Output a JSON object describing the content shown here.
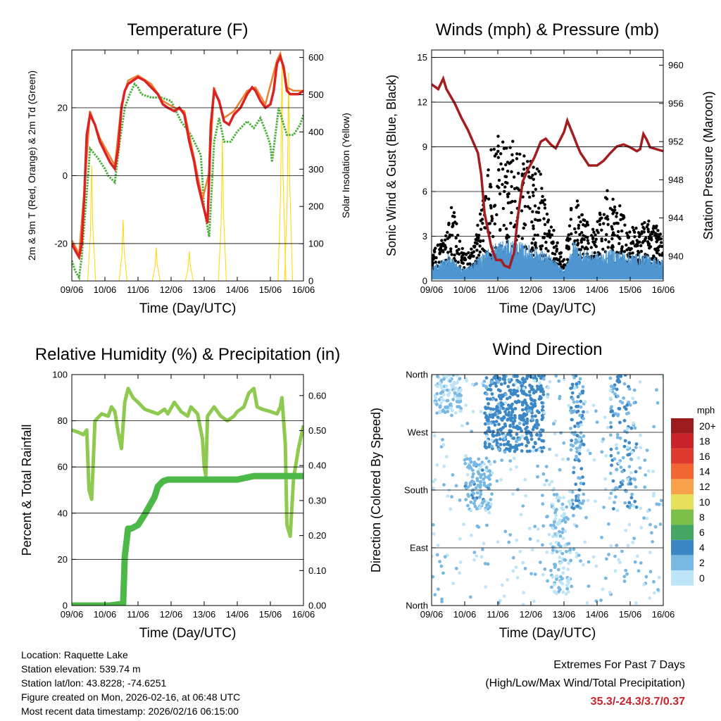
{
  "chart_data": [
    {
      "id": "temp",
      "type": "line",
      "title": "Temperature (F)",
      "xlabel": "Time (Day/UTC)",
      "ylabel": "2m & 9m T (Red, Orange) & 2m Td (Green)",
      "ylabel_right": "Solar Insolation (Yellow)",
      "x_ticks": [
        "09/06",
        "10/06",
        "11/06",
        "12/06",
        "13/06",
        "14/06",
        "15/06",
        "16/06"
      ],
      "ylim": [
        -31,
        37
      ],
      "y_ticks": [
        -20,
        0,
        20
      ],
      "y_tick_labels": [
        "-20",
        "0",
        "20"
      ],
      "ylim_right": [
        0,
        620
      ],
      "y2_ticks": [
        0,
        100,
        200,
        300,
        400,
        500,
        600
      ],
      "y2_tick_labels": [
        "0",
        "100",
        "200",
        "300",
        "400",
        "500",
        "600"
      ],
      "series": [
        {
          "name": "2m T",
          "color": "#dd2222",
          "style": "dots-thick",
          "x": [
            0,
            0.1,
            0.22,
            0.3,
            0.38,
            0.45,
            0.55,
            0.7,
            0.85,
            1.0,
            1.15,
            1.3,
            1.4,
            1.5,
            1.6,
            1.7,
            1.85,
            2.0,
            2.2,
            2.4,
            2.6,
            2.75,
            2.9,
            3.1,
            3.25,
            3.4,
            3.55,
            3.7,
            3.8,
            3.95,
            4.05,
            4.1,
            4.15,
            4.2,
            4.3,
            4.45,
            4.6,
            4.75,
            4.9,
            5.1,
            5.3,
            5.45,
            5.55,
            5.7,
            5.85,
            6.0,
            6.1,
            6.2,
            6.3,
            6.4,
            6.5,
            6.6,
            6.7,
            6.85,
            7.0
          ],
          "y": [
            -20,
            -22,
            -24,
            -20,
            -5,
            12,
            18,
            15,
            10,
            7,
            4,
            2,
            8,
            20,
            25,
            27,
            28,
            29,
            28,
            26,
            24,
            21,
            20,
            19,
            20,
            18,
            10,
            4,
            -2,
            -8,
            -12,
            -14,
            0,
            15,
            25,
            22,
            16,
            15,
            18,
            20,
            24,
            26,
            25,
            22,
            20,
            21,
            25,
            33,
            35,
            32,
            25,
            24,
            24,
            24,
            25
          ]
        },
        {
          "name": "9m T",
          "color": "#f08030",
          "style": "line",
          "x": [
            0,
            0.22,
            0.38,
            0.55,
            0.85,
            1.3,
            1.5,
            1.7,
            2.0,
            2.4,
            2.75,
            3.1,
            3.4,
            3.7,
            3.95,
            4.15,
            4.3,
            4.6,
            4.9,
            5.3,
            5.55,
            5.85,
            6.2,
            6.3,
            6.5,
            6.7,
            7.0
          ],
          "y": [
            -19,
            -23,
            -4,
            19,
            11,
            3,
            21,
            28,
            29.5,
            27,
            22,
            20,
            19,
            5,
            -7,
            1,
            26,
            17,
            19,
            25,
            26,
            21,
            34,
            36,
            26,
            25,
            25
          ]
        },
        {
          "name": "2m Td",
          "color": "#4caf3c",
          "style": "dots",
          "x": [
            0,
            0.1,
            0.22,
            0.3,
            0.45,
            0.55,
            0.8,
            1.0,
            1.1,
            1.3,
            1.45,
            1.6,
            1.75,
            1.9,
            2.0,
            2.1,
            2.4,
            2.7,
            3.0,
            3.3,
            3.6,
            3.9,
            4.0,
            4.15,
            4.3,
            4.45,
            4.6,
            4.8,
            5.0,
            5.3,
            5.5,
            5.7,
            5.9,
            6.0,
            6.05,
            6.15,
            6.25,
            6.4,
            6.5,
            6.7,
            6.9,
            7.0
          ],
          "y": [
            -25,
            -28,
            -30,
            -24,
            -5,
            8,
            5,
            2,
            0,
            -2,
            10,
            20,
            24,
            27,
            26,
            24,
            23,
            23,
            22,
            16,
            12,
            6,
            -10,
            -18,
            10,
            17,
            10,
            10,
            13,
            16,
            14,
            17,
            12,
            9,
            4,
            12,
            20,
            15,
            12,
            12,
            15,
            18
          ]
        }
      ],
      "solar_insolation": {
        "name": "Solar Insolation",
        "color": "#ffd700",
        "peaks": [
          {
            "day": 0.6,
            "value": 310
          },
          {
            "day": 1.55,
            "value": 165
          },
          {
            "day": 2.55,
            "value": 90
          },
          {
            "day": 3.55,
            "value": 80
          },
          {
            "day": 4.55,
            "value": 380
          },
          {
            "day": 5.55,
            "value": 0
          },
          {
            "day": 6.35,
            "value": 590
          },
          {
            "day": 6.55,
            "value": 560
          }
        ]
      }
    },
    {
      "id": "winds",
      "type": "scatter",
      "title": "Winds (mph) & Pressure (mb)",
      "xlabel": "Time (Day/UTC)",
      "ylabel": "Sonic Wind & Gust (Blue, Black)",
      "ylabel_right": "Station Pressure (Maroon)",
      "x_ticks": [
        "09/06",
        "10/06",
        "11/06",
        "12/06",
        "13/06",
        "14/06",
        "15/06",
        "16/06"
      ],
      "ylim": [
        0,
        15.5
      ],
      "y_ticks": [
        0,
        3,
        6,
        9,
        12,
        15
      ],
      "y_tick_labels": [
        "0",
        "3",
        "6",
        "9",
        "12",
        "15"
      ],
      "ylim_right": [
        937.4,
        961.6
      ],
      "y2_ticks": [
        940,
        944,
        948,
        952,
        956,
        960
      ],
      "y2_tick_labels": [
        "940",
        "944",
        "948",
        "952",
        "956",
        "960"
      ],
      "gust_envelope": {
        "x": [
          0,
          0.4,
          0.6,
          0.8,
          1.0,
          1.3,
          1.6,
          1.75,
          1.9,
          2.1,
          2.5,
          2.9,
          3.3,
          3.5,
          3.9,
          4.0,
          4.3,
          4.4,
          4.6,
          4.9,
          5.3,
          5.6,
          5.9,
          6.2,
          6.5,
          6.9,
          7.0
        ],
        "y": [
          1.5,
          2.5,
          5,
          3,
          1.5,
          2,
          6,
          8,
          10,
          9,
          9,
          8,
          7,
          4,
          1.5,
          1,
          6,
          5,
          4,
          3,
          6,
          5,
          4,
          3,
          4,
          3,
          2
        ]
      },
      "wind_envelope": {
        "x": [
          0,
          0.5,
          1.0,
          1.5,
          2.0,
          2.5,
          3.0,
          3.5,
          4.0,
          4.3,
          4.5,
          5.0,
          5.5,
          6.0,
          6.5,
          7.0
        ],
        "y": [
          0.8,
          1.5,
          0.7,
          1.5,
          2.3,
          2.3,
          2.0,
          1.6,
          0.6,
          2.4,
          1.8,
          1.6,
          1.8,
          1.6,
          1.5,
          1.2
        ]
      },
      "series": [
        {
          "name": "Sonic Wind",
          "color": "#4d96d2"
        },
        {
          "name": "Gust",
          "color": "#000000"
        },
        {
          "name": "Station Pressure",
          "color": "#a31d21",
          "x": [
            0,
            0.2,
            0.35,
            0.45,
            0.7,
            0.9,
            1.1,
            1.2,
            1.4,
            1.5,
            1.6,
            1.8,
            1.95,
            2.1,
            2.2,
            2.35,
            2.5,
            2.6,
            2.75,
            2.9,
            3.1,
            3.3,
            3.45,
            3.6,
            3.75,
            4.0,
            4.1,
            4.3,
            4.4,
            4.5,
            4.6,
            4.75,
            5.0,
            5.2,
            5.4,
            5.6,
            5.8,
            6.0,
            6.2,
            6.3,
            6.4,
            6.5,
            6.6,
            6.8,
            7.0
          ],
          "y": [
            958,
            957.5,
            958.6,
            957.5,
            956,
            954.5,
            953.2,
            952.4,
            950.8,
            948.5,
            944.5,
            941,
            939.6,
            939.6,
            939,
            938.8,
            940.5,
            944,
            947.8,
            949,
            950.3,
            952,
            952.3,
            951.7,
            951.3,
            953,
            954.2,
            952.5,
            951.6,
            950.8,
            950.3,
            949.5,
            949.5,
            950,
            950.8,
            951.5,
            951.7,
            951.4,
            951,
            951.2,
            952.8,
            952.2,
            951.4,
            951.2,
            951
          ]
        }
      ]
    },
    {
      "id": "rh",
      "type": "line",
      "title": "Relative Humidity (%) & Precipitation (in)",
      "xlabel": "Time (Day/UTC)",
      "ylabel": "Percent & Total Rainfall",
      "x_ticks": [
        "09/06",
        "10/06",
        "11/06",
        "12/06",
        "13/06",
        "14/06",
        "15/06",
        "16/06"
      ],
      "ylim": [
        0,
        100
      ],
      "y_ticks": [
        0,
        20,
        40,
        60,
        80,
        100
      ],
      "y_tick_labels": [
        "0",
        "20",
        "40",
        "60",
        "80",
        "100"
      ],
      "ylim_right": [
        0,
        0.66
      ],
      "y2_ticks": [
        0,
        0.1,
        0.2,
        0.3,
        0.4,
        0.5,
        0.6
      ],
      "y2_tick_labels": [
        "0.00",
        "0.10",
        "0.20",
        "0.30",
        "0.40",
        "0.50",
        "0.60"
      ],
      "series": [
        {
          "name": "Relative Humidity",
          "color": "#8fca50",
          "x": [
            0,
            0.2,
            0.35,
            0.45,
            0.52,
            0.6,
            0.7,
            0.9,
            1.1,
            1.2,
            1.3,
            1.4,
            1.5,
            1.6,
            1.7,
            1.85,
            2.0,
            2.2,
            2.4,
            2.6,
            2.8,
            2.9,
            3.1,
            3.3,
            3.5,
            3.6,
            3.8,
            3.95,
            4.0,
            4.05,
            4.1,
            4.3,
            4.5,
            4.7,
            4.9,
            5.0,
            5.2,
            5.35,
            5.5,
            5.6,
            5.75,
            6.0,
            6.2,
            6.3,
            6.35,
            6.45,
            6.5,
            6.6,
            6.7,
            6.85,
            7.0
          ],
          "y": [
            76,
            75,
            74,
            76,
            50,
            46,
            80,
            83,
            82,
            86,
            84,
            75,
            68,
            88,
            94,
            90,
            88,
            85,
            84,
            83,
            85,
            83,
            88,
            84,
            82,
            86,
            83,
            72,
            60,
            56,
            82,
            86,
            82,
            80,
            82,
            84,
            86,
            92,
            94,
            86,
            85,
            84,
            83,
            86,
            90,
            70,
            35,
            30,
            55,
            68,
            78
          ]
        },
        {
          "name": "Total Precipitation",
          "color": "#4cb848",
          "x": [
            0,
            0.85,
            1.15,
            1.55,
            1.6,
            1.7,
            1.8,
            2.0,
            2.2,
            2.5,
            2.6,
            2.75,
            2.9,
            3.1,
            3.3,
            3.5,
            4.0,
            5.0,
            5.5,
            6.0,
            7.0
          ],
          "y": [
            0,
            0,
            0,
            0.005,
            0.14,
            0.22,
            0.22,
            0.23,
            0.26,
            0.31,
            0.34,
            0.355,
            0.36,
            0.36,
            0.36,
            0.36,
            0.36,
            0.36,
            0.37,
            0.37,
            0.37
          ]
        }
      ]
    },
    {
      "id": "wdir",
      "type": "scatter",
      "title": "Wind Direction",
      "xlabel": "Time (Day/UTC)",
      "ylabel": "Direction (Colored By Speed)",
      "x_ticks": [
        "09/06",
        "10/06",
        "11/06",
        "12/06",
        "13/06",
        "14/06",
        "15/06",
        "16/06"
      ],
      "y_tick_labels": [
        "North",
        "East",
        "South",
        "West",
        "North"
      ],
      "ylim": [
        0,
        360
      ],
      "legend": {
        "unit": "mph",
        "position": "right",
        "levels": [
          "20+",
          "18",
          "16",
          "14",
          "12",
          "10",
          "8",
          "6",
          "4",
          "2",
          "0"
        ],
        "colors": [
          "#9b1b1e",
          "#c8242a",
          "#e03a2e",
          "#f06532",
          "#f9a04a",
          "#e8e05a",
          "#7cc04a",
          "#45a663",
          "#3c88c6",
          "#78b8e2",
          "#bde4f7"
        ]
      },
      "clusters": [
        {
          "x0": 0.1,
          "x1": 0.9,
          "dir0": 300,
          "dir1": 360,
          "speed": 1
        },
        {
          "x0": 1.6,
          "x1": 3.4,
          "dir0": 240,
          "dir1": 360,
          "speed": 4
        },
        {
          "x0": 4.2,
          "x1": 4.6,
          "dir0": 150,
          "dir1": 360,
          "speed": 3
        },
        {
          "x0": 5.4,
          "x1": 6.2,
          "dir0": 150,
          "dir1": 360,
          "speed": 3
        },
        {
          "x0": 1.0,
          "x1": 1.8,
          "dir0": 150,
          "dir1": 230,
          "speed": 2
        },
        {
          "x0": 3.6,
          "x1": 4.2,
          "dir0": 20,
          "dir1": 180,
          "speed": 1
        },
        {
          "x0": 0,
          "x1": 7,
          "dir0": 0,
          "dir1": 360,
          "speed": 1
        }
      ]
    }
  ],
  "info": {
    "location": "Location: Raquette Lake",
    "elevation": "Station elevation: 539.74 m",
    "latlon": "Station lat/lon: 43.8228; -74.6251",
    "created": "Figure created on Mon, 2026-02-16, at 06:48 UTC",
    "recent": "Most recent data timestamp: 2026/02/16 06:15:00"
  },
  "extremes": {
    "title": "Extremes For Past 7 Days",
    "subtitle": "(High/Low/Max Wind/Total Precipitation)",
    "values": "35.3/-24.3/3.7/0.37",
    "values_color": "#c8232c"
  }
}
